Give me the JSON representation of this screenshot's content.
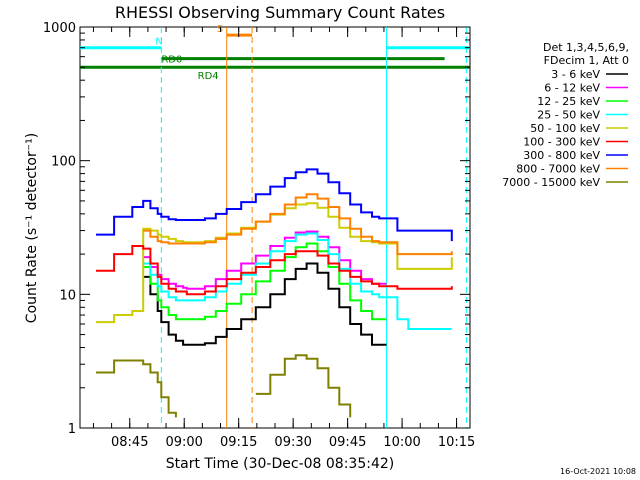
{
  "chart_data": {
    "type": "line",
    "title": "RHESSI Observing Summary Count Rates",
    "xlabel": "Start Time (30-Dec-08 08:35:42)",
    "ylabel": "Count Rate (s⁻¹ detector⁻¹)",
    "yscale": "log",
    "ylim": [
      1,
      1000
    ],
    "xlim_minutes": [
      -4.4,
      103
    ],
    "ytick_labels": [
      "1",
      "10",
      "100",
      "1000"
    ],
    "xtick_labels": [
      "08:45",
      "09:00",
      "09:15",
      "09:30",
      "09:45",
      "10:00",
      "10:15"
    ],
    "xtick_minutes": [
      9.3,
      24.3,
      39.3,
      54.3,
      69.3,
      84.3,
      99.3
    ],
    "timestamp": "16-Oct-2021 10:08",
    "legend_header": [
      "Det 1,3,4,5,6,9,",
      "FDecim 1, Att 0"
    ],
    "legend_position": "right",
    "x": [
      0,
      5,
      10,
      13,
      15,
      17,
      18,
      20,
      22,
      24,
      25,
      27,
      30,
      33,
      36,
      40,
      44,
      48,
      52,
      55,
      58,
      61,
      64,
      67,
      70,
      73,
      76,
      78,
      80,
      83,
      86,
      89,
      92,
      95,
      98
    ],
    "series": [
      {
        "name": "3 - 6 keV",
        "color": "#000000",
        "values": [
          null,
          null,
          null,
          13.5,
          10,
          7.5,
          6.2,
          5,
          4.5,
          4.2,
          4.2,
          4.2,
          4.3,
          4.8,
          5.5,
          6.5,
          8,
          10,
          13,
          15.5,
          17,
          14.5,
          11,
          8,
          6,
          5,
          4.2,
          4.2,
          4.2,
          null,
          null,
          null,
          null,
          null,
          null
        ]
      },
      {
        "name": "6 - 12 keV",
        "color": "#ff00ff",
        "values": [
          null,
          null,
          null,
          19,
          16,
          14,
          13,
          12,
          11.5,
          11.2,
          11,
          11,
          11.5,
          13,
          15,
          17,
          19.5,
          23,
          26.5,
          29,
          29.5,
          27,
          22.5,
          18,
          15,
          13,
          12,
          12,
          12,
          null,
          null,
          null,
          null,
          null,
          null
        ]
      },
      {
        "name": "12 - 25 keV",
        "color": "#00ff00",
        "values": [
          null,
          null,
          null,
          16,
          12,
          9,
          8,
          7,
          6.5,
          6.5,
          6.5,
          6.5,
          6.8,
          7.5,
          8.5,
          10,
          12.5,
          15,
          19,
          22.5,
          24,
          21,
          16,
          12,
          9,
          7.5,
          6.5,
          6.5,
          6.5,
          null,
          null,
          null,
          null,
          null,
          null
        ]
      },
      {
        "name": "25 - 50 keV",
        "color": "#00ffff",
        "values": [
          null,
          null,
          null,
          17,
          14,
          11.5,
          10.5,
          9.5,
          9,
          9,
          9,
          9,
          9.5,
          10.5,
          12,
          14,
          17,
          21,
          25,
          28,
          28.5,
          25.5,
          20,
          15.5,
          12,
          10.5,
          10,
          9.5,
          9.5,
          6.5,
          5.5,
          5.5,
          5.5,
          5.5,
          5.5
        ]
      },
      {
        "name": "50 - 100 keV",
        "color": "#cccc00",
        "values": [
          6.2,
          7,
          7.5,
          31,
          30,
          28,
          27,
          26,
          25,
          24.5,
          24.5,
          24.5,
          25,
          26.5,
          28.5,
          31.5,
          35,
          39.5,
          44,
          47,
          48,
          44.5,
          38,
          31.5,
          27,
          25,
          24.5,
          24,
          24,
          15.5,
          15.5,
          15.5,
          15.5,
          15.5,
          19
        ]
      },
      {
        "name": "100 - 300 keV",
        "color": "#ff0000",
        "values": [
          15,
          20,
          23,
          22,
          17,
          13.5,
          12,
          11,
          10.5,
          10.5,
          10,
          10,
          10.5,
          11.5,
          13,
          14.5,
          16,
          18,
          20,
          21,
          21,
          19.5,
          17,
          15,
          13.5,
          12.5,
          12,
          11.5,
          11.5,
          11,
          11,
          11,
          11,
          11,
          11.5
        ]
      },
      {
        "name": "300 - 800 keV",
        "color": "#0000ff",
        "values": [
          28,
          38,
          45,
          50,
          44,
          40,
          38,
          36.5,
          36,
          36,
          36,
          36,
          37,
          40,
          43.5,
          49,
          56,
          64,
          74,
          82,
          86,
          80,
          69,
          57,
          47,
          41,
          38,
          37,
          37,
          30,
          30,
          30,
          30,
          30,
          25
        ]
      },
      {
        "name": "800 - 7000 keV",
        "color": "#ff8000",
        "values": [
          null,
          null,
          null,
          30,
          27,
          25,
          24.5,
          24,
          24,
          24,
          24,
          24,
          24.5,
          26,
          28,
          31,
          35,
          40,
          47,
          53,
          56,
          52,
          45,
          37,
          31,
          27,
          25,
          24.5,
          24.5,
          20,
          20,
          20,
          20,
          20,
          21
        ]
      },
      {
        "name": "7000 - 15000 keV",
        "color": "#808000",
        "values": [
          2.6,
          3.2,
          3.2,
          3.0,
          2.6,
          2.2,
          1.7,
          1.3,
          1.2,
          null,
          null,
          null,
          null,
          null,
          null,
          null,
          1.8,
          2.5,
          3.3,
          3.5,
          3.3,
          2.8,
          2.0,
          1.5,
          1.2,
          null,
          null,
          null,
          null,
          null,
          null,
          null,
          null,
          null,
          null
        ]
      }
    ],
    "annotations": [
      {
        "label": "N",
        "color": "#00ffff",
        "orientation": "horizontal",
        "value": 700,
        "x_start": -4.4,
        "x_end": 18
      },
      {
        "label": "",
        "color": "#00ffff",
        "orientation": "horizontal",
        "value": 700,
        "x_start": 80,
        "x_end": 103
      },
      {
        "label": "RD0",
        "color": "#008000",
        "orientation": "horizontal",
        "value": 580,
        "x_start": 18,
        "x_end": 96
      },
      {
        "label": "RD4",
        "color": "#008000",
        "orientation": "horizontal",
        "value": 500,
        "x_start": -4.4,
        "x_end": 103
      },
      {
        "label": "S",
        "color": "#ff8000",
        "orientation": "horizontal",
        "value": 870,
        "x_start": 36,
        "x_end": 43
      },
      {
        "label": "",
        "color": "#00ffff",
        "orientation": "vertical_dashed",
        "value": 18
      },
      {
        "label": "",
        "color": "#00ffff",
        "orientation": "vertical",
        "value": 80
      },
      {
        "label": "",
        "color": "#00ffff",
        "orientation": "vertical_dashed",
        "value": 102
      },
      {
        "label": "",
        "color": "#ff8000",
        "orientation": "vertical",
        "value": 36
      },
      {
        "label": "",
        "color": "#ff8000",
        "orientation": "vertical_dashed",
        "value": 43
      }
    ]
  }
}
